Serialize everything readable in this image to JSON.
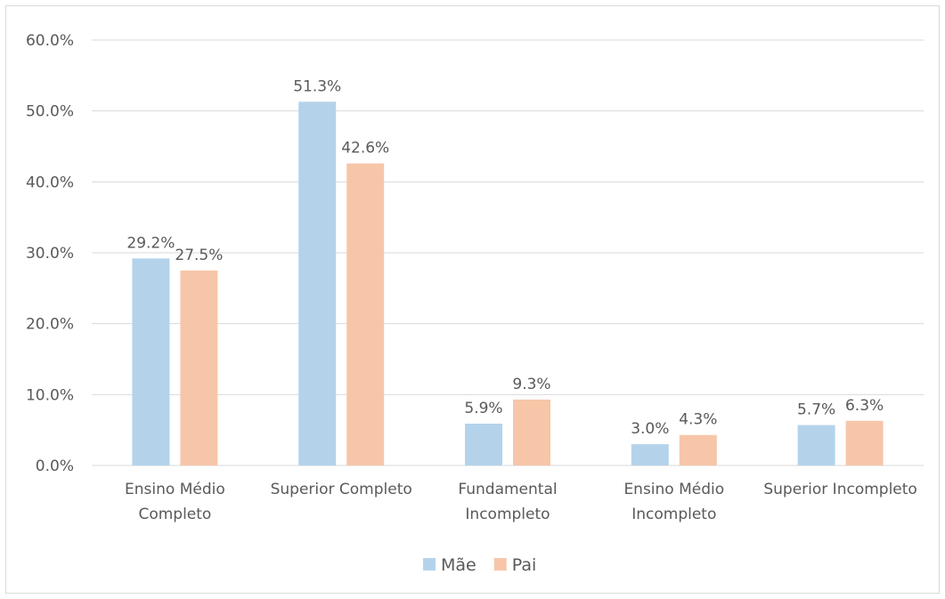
{
  "chart_data": {
    "type": "bar",
    "categories": [
      [
        "Ensino Médio",
        "Completo"
      ],
      [
        "Superior Completo"
      ],
      [
        "Fundamental",
        "Incompleto"
      ],
      [
        "Ensino Médio",
        "Incompleto"
      ],
      [
        "Superior Incompleto"
      ]
    ],
    "series": [
      {
        "name": "Mãe",
        "color": "#b4d3eb",
        "values": [
          29.2,
          51.3,
          5.9,
          3.0,
          5.7
        ]
      },
      {
        "name": "Pai",
        "color": "#f7c6a9",
        "values": [
          27.5,
          42.6,
          9.3,
          4.3,
          6.3
        ]
      }
    ],
    "data_labels": [
      [
        "29.2%",
        "51.3%",
        "5.9%",
        "3.0%",
        "5.7%"
      ],
      [
        "27.5%",
        "42.6%",
        "9.3%",
        "4.3%",
        "6.3%"
      ]
    ],
    "y_ticks": [
      0,
      10,
      20,
      30,
      40,
      50,
      60
    ],
    "y_tick_labels": [
      "0.0%",
      "10.0%",
      "20.0%",
      "30.0%",
      "40.0%",
      "50.0%",
      "60.0%"
    ],
    "ylim": [
      0,
      60
    ],
    "grid": true,
    "legend_position": "bottom",
    "title": "",
    "xlabel": "",
    "ylabel": ""
  }
}
